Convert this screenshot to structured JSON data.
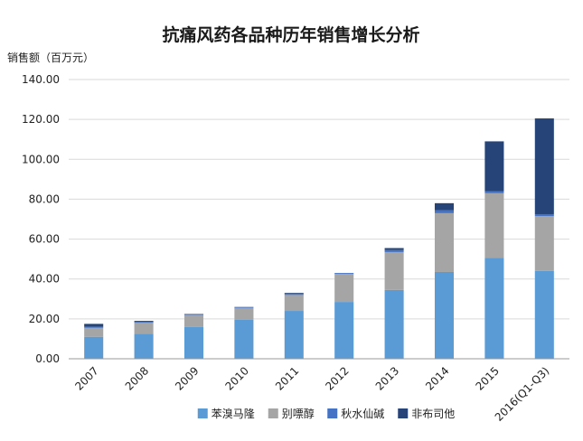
{
  "chart_data": {
    "type": "bar",
    "stacked": true,
    "title": "抗痛风药各品种历年销售增长分析",
    "ylabel": "销售额（百万元）",
    "xlabel": "",
    "ylim": [
      0,
      140
    ],
    "yticks": [
      "0.00",
      "20.00",
      "40.00",
      "60.00",
      "80.00",
      "100.00",
      "120.00",
      "140.00"
    ],
    "grid": true,
    "legend_position": "bottom",
    "categories": [
      "2007",
      "2008",
      "2009",
      "2010",
      "2011",
      "2012",
      "2013",
      "2014",
      "2015",
      "2016(Q1-Q3)"
    ],
    "series": [
      {
        "name": "苯溴马隆",
        "color": "#5b9bd5",
        "values": [
          11,
          12.5,
          16,
          19.5,
          24,
          28.5,
          34.5,
          43.5,
          50.5,
          44
        ]
      },
      {
        "name": "别嘌醇",
        "color": "#a5a5a5",
        "values": [
          4.5,
          5.5,
          6,
          6,
          8,
          14,
          19,
          29.5,
          32.5,
          27.5
        ]
      },
      {
        "name": "秋水仙碱",
        "color": "#4472c4",
        "values": [
          0.5,
          0.5,
          0.5,
          0.5,
          0.5,
          0.5,
          1,
          1.5,
          1,
          1
        ]
      },
      {
        "name": "非布司他",
        "color": "#264478",
        "values": [
          1.5,
          0.5,
          0,
          0,
          0.5,
          0,
          1,
          3.5,
          25,
          48
        ]
      }
    ]
  }
}
